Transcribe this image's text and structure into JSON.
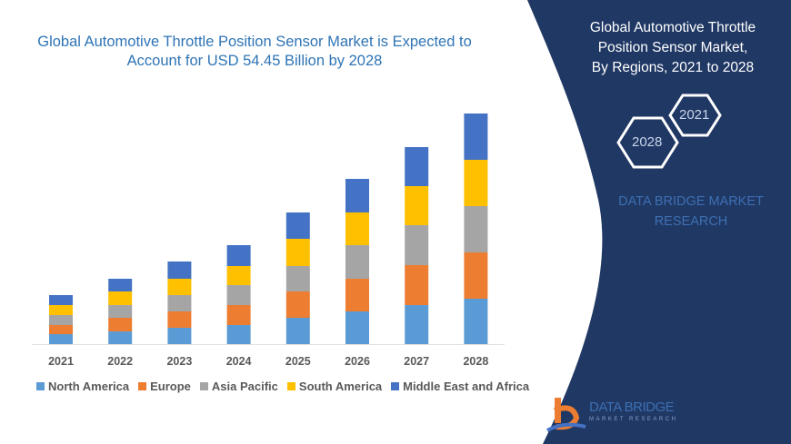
{
  "title": "Global Automotive Throttle Position Sensor Market is Expected to Account for  USD 54.45 Billion by 2028",
  "panel": {
    "title_lines": [
      "Global Automotive Throttle",
      "Position Sensor Market,",
      "By Regions,  2021 to 2028"
    ],
    "hex_start": "2021",
    "hex_end": "2028",
    "brand_lines": [
      "DATA BRIDGE MARKET",
      "RESEARCH"
    ],
    "logo_name": "DATA BRIDGE",
    "logo_sub": "MARKET RESEARCH",
    "color": "#203864"
  },
  "chart_data": {
    "type": "bar",
    "stacked": true,
    "title": "Global Automotive Throttle Position Sensor Market is Expected to Account for  USD 54.45 Billion by 2028",
    "categories": [
      "2021",
      "2022",
      "2023",
      "2024",
      "2025",
      "2026",
      "2027",
      "2028"
    ],
    "series": [
      {
        "name": "North America",
        "color": "#5b9bd5",
        "values": [
          11,
          14,
          18,
          21,
          29,
          36,
          43,
          50
        ]
      },
      {
        "name": "Europe",
        "color": "#ed7d31",
        "values": [
          10,
          15,
          18,
          22,
          29,
          36,
          44,
          51
        ]
      },
      {
        "name": "Asia Pacific",
        "color": "#a5a5a5",
        "values": [
          11,
          14,
          18,
          22,
          28,
          37,
          44,
          51
        ]
      },
      {
        "name": "South America",
        "color": "#ffc000",
        "values": [
          11,
          15,
          18,
          21,
          30,
          36,
          43,
          51
        ]
      },
      {
        "name": "Middle East and Africa",
        "color": "#4472c4",
        "values": [
          11,
          14,
          19,
          23,
          29,
          37,
          43,
          51
        ]
      }
    ],
    "yaxis_visible": false,
    "grid": false,
    "legend": "bottom"
  }
}
